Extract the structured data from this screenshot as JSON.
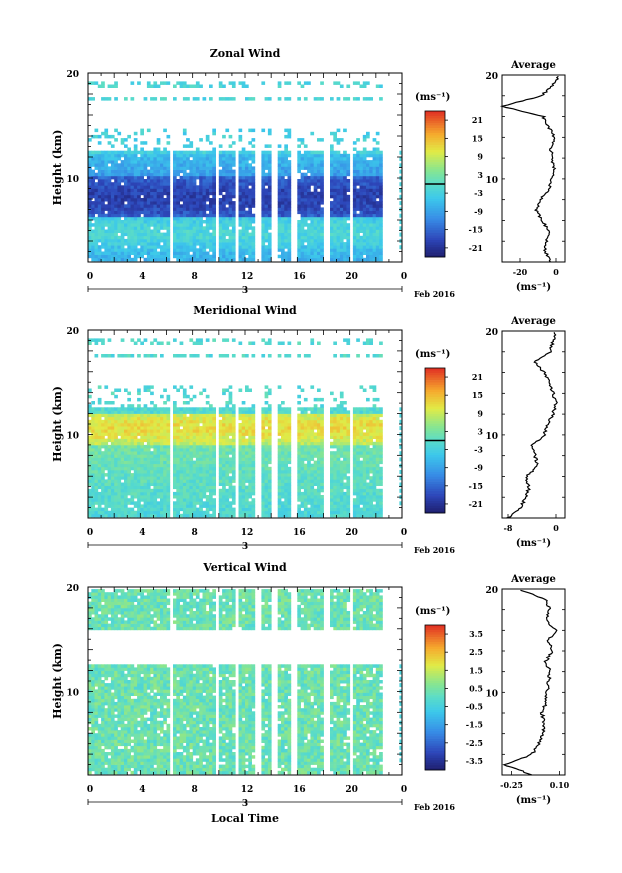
{
  "figure": {
    "xlabel": "Local Time",
    "date_label": "Feb 2016",
    "day_label": "3",
    "xticks": [
      "0",
      "4",
      "8",
      "12",
      "16",
      "20",
      "0"
    ],
    "ylabel": "Height (km)",
    "yticks": [
      "20",
      "10"
    ],
    "unit_label": "(ms⁻¹)",
    "profile_title": "Average"
  },
  "chart_data": [
    {
      "type": "heatmap",
      "title": "Zonal Wind",
      "xlabel": "Local Time",
      "ylabel": "Height (km)",
      "xlim": [
        0,
        24
      ],
      "ylim": [
        2,
        20
      ],
      "colorbar": {
        "ticks": [
          "21",
          "15",
          "9",
          "3",
          "-3",
          "-9",
          "-15",
          "-21"
        ],
        "range": [
          -24,
          24
        ],
        "zero_line": 0
      },
      "profile": {
        "title": "Average",
        "xticks": [
          "-20",
          "0"
        ],
        "xlim": [
          -30,
          5
        ],
        "heights": [
          2,
          3,
          4,
          5,
          6,
          7,
          8,
          9,
          10,
          11,
          12,
          13,
          14,
          15,
          16,
          17,
          18,
          19,
          20
        ],
        "values": [
          -3,
          -6,
          -5,
          -4,
          -8,
          -11,
          -9,
          -4,
          -2,
          -1,
          -2,
          -3,
          -1,
          -4,
          -7,
          -30,
          -8,
          -2,
          2
        ]
      }
    },
    {
      "type": "heatmap",
      "title": "Meridional Wind",
      "xlabel": "Local Time",
      "ylabel": "Height (km)",
      "xlim": [
        0,
        24
      ],
      "ylim": [
        2,
        20
      ],
      "colorbar": {
        "ticks": [
          "21",
          "15",
          "9",
          "3",
          "-3",
          "-9",
          "-15",
          "-21"
        ],
        "range": [
          -24,
          24
        ],
        "zero_line": 0
      },
      "profile": {
        "title": "Average",
        "xticks": [
          "-8",
          "0"
        ],
        "xlim": [
          -9,
          1.5
        ],
        "heights": [
          2,
          3,
          4,
          5,
          6,
          7,
          8,
          9,
          10,
          11,
          12,
          13,
          14,
          15,
          16,
          17,
          18,
          19,
          20
        ],
        "values": [
          -8,
          -6,
          -5,
          -4.5,
          -5,
          -3,
          -3.5,
          -4,
          -2,
          -1.5,
          -0.5,
          0,
          -0.5,
          -1,
          -2,
          -3.5,
          -1,
          -0.5,
          0
        ]
      }
    },
    {
      "type": "heatmap",
      "title": "Vertical Wind",
      "xlabel": "Local Time",
      "ylabel": "Height (km)",
      "xlim": [
        0,
        24
      ],
      "ylim": [
        2,
        20
      ],
      "colorbar": {
        "ticks": [
          "3.5",
          "2.5",
          "1.5",
          "0.5",
          "-0.5",
          "-1.5",
          "-2.5",
          "-3.5"
        ],
        "range": [
          -4,
          4
        ],
        "zero_line": null
      },
      "profile": {
        "title": "Average",
        "xticks": [
          "-0.25",
          "0.10"
        ],
        "xlim": [
          -0.32,
          0.14
        ],
        "heights": [
          2,
          3,
          4,
          5,
          6,
          7,
          8,
          9,
          10,
          11,
          12,
          13,
          14,
          15,
          16,
          17,
          18,
          19,
          20
        ],
        "values": [
          -0.1,
          -0.3,
          -0.1,
          -0.05,
          -0.02,
          -0.01,
          -0.03,
          0.0,
          0.01,
          0.02,
          0.03,
          0.0,
          0.05,
          0.02,
          0.07,
          0.0,
          0.03,
          0.0,
          -0.2
        ]
      }
    }
  ]
}
